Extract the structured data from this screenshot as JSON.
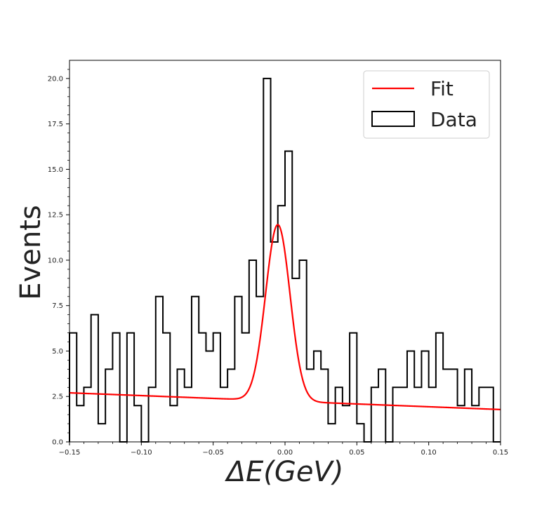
{
  "chart_data": {
    "type": "histogram",
    "xlabel": "ΔE(GeV)",
    "ylabel": "Events",
    "xlim": [
      -0.15,
      0.15
    ],
    "ylim": [
      0,
      21
    ],
    "xticks": [
      "−0.15",
      "−0.10",
      "−0.05",
      "0.00",
      "0.05",
      "0.10",
      "0.15"
    ],
    "yticks": [
      "0.0",
      "2.5",
      "5.0",
      "7.5",
      "10.0",
      "12.5",
      "15.0",
      "17.5",
      "20.0"
    ],
    "bin_width": 0.005,
    "bin_start": -0.15,
    "data": {
      "name": "Data",
      "color": "#000000",
      "counts": [
        6,
        2,
        3,
        7,
        1,
        4,
        6,
        0,
        6,
        2,
        0,
        3,
        8,
        6,
        2,
        4,
        3,
        8,
        6,
        5,
        6,
        3,
        4,
        8,
        6,
        10,
        8,
        20,
        11,
        13,
        16,
        9,
        10,
        4,
        5,
        4,
        1,
        3,
        2,
        6,
        1,
        0,
        3,
        4,
        0,
        3,
        3,
        5,
        3,
        5,
        3,
        6,
        4,
        4,
        2,
        4,
        2,
        3,
        3,
        0
      ]
    },
    "fit": {
      "name": "Fit",
      "color": "#ff0000",
      "background_start": 2.7,
      "background_end": 1.78,
      "peak_mean": -0.005,
      "peak_sigma": 0.0085,
      "peak_amplitude": 9.7
    },
    "legend": {
      "position": "top-right",
      "entries": [
        "Fit",
        "Data"
      ]
    },
    "grid": false
  }
}
